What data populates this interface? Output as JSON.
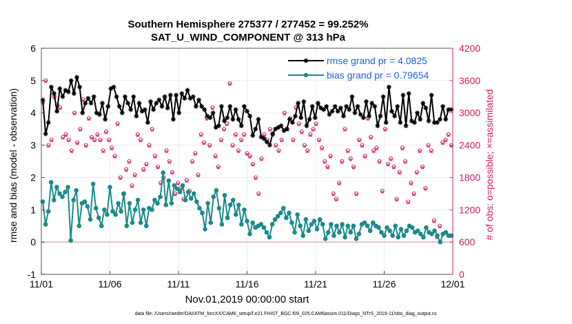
{
  "chart_data": {
    "type": "line",
    "title": "Southern Hemisphere 275377 / 277452 = 99.252%",
    "subtitle": "SAT_U_WIND_COMPONENT @ 313 hPa",
    "xlabel": "Nov.01,2019 00:00:00 start",
    "ylabel_left": "rmse and bias (model - observation)",
    "ylabel_right": "# of obs: o=possible; ×=assimilated",
    "footnote": "data file: /Users/raeder/DAI/ATM_forcXX/CAM6_setup/f.e21.FHIST_BGC.f09_025.CAM6assim.011/Diags_NTrS_2019-11/obs_diag_output.nc",
    "x_ticks": [
      "11/01",
      "11/06",
      "11/11",
      "11/16",
      "11/21",
      "11/26",
      "12/01"
    ],
    "ylim_left": [
      -1,
      6
    ],
    "y_ticks_left": [
      "-1",
      "0",
      "1",
      "2",
      "3",
      "4",
      "5",
      "6"
    ],
    "ylim_right": [
      0,
      4200
    ],
    "y_ticks_right": [
      "0",
      "600",
      "1200",
      "1800",
      "2400",
      "3000",
      "3600",
      "4200"
    ],
    "x_range_days": [
      0,
      30
    ],
    "grid": true,
    "legend": [
      "rmse grand pr = 4.0825",
      "bias grand pr = 0.79654"
    ],
    "colors": {
      "rmse": "#000000",
      "bias": "#1a8a8a",
      "obs": "#cc1a66",
      "zero_line": "#d8b8b8"
    },
    "series": [
      {
        "name": "rmse",
        "values": [
          4.4,
          3.35,
          3.7,
          4.8,
          4.6,
          4.05,
          4.75,
          4.5,
          4.7,
          4.65,
          5.0,
          4.6,
          5.1,
          4.8,
          4.0,
          4.3,
          4.45,
          4.3,
          4.5,
          4.0,
          3.95,
          4.3,
          3.8,
          4.2,
          4.75,
          4.8,
          4.5,
          4.2,
          4.0,
          4.5,
          4.3,
          4.1,
          4.5,
          3.9,
          4.3,
          4.05,
          4.1,
          3.7,
          4.35,
          4.1,
          4.3,
          4.4,
          4.2,
          4.5,
          4.15,
          4.55,
          3.8,
          4.55,
          4.0,
          4.6,
          4.45,
          4.7,
          4.45,
          4.5,
          4.2,
          4.4,
          4.2,
          4.1,
          3.9,
          3.85,
          4.0,
          3.55,
          3.6,
          4.2,
          3.75,
          3.85,
          4.2,
          3.8,
          4.1,
          3.8,
          3.6,
          4.2,
          4.05,
          3.9,
          3.3,
          3.5,
          3.8,
          3.25,
          3.2,
          3.1,
          3.0,
          3.35,
          3.5,
          3.55,
          3.6,
          3.45,
          3.5,
          3.8,
          3.7,
          3.9,
          4.3,
          3.85,
          4.35,
          3.6,
          3.8,
          4.2,
          3.85,
          4.3,
          4.15,
          4.1,
          4.2,
          3.95,
          4.05,
          4.2,
          4.05,
          4.15,
          3.9,
          4.2,
          4.1,
          4.5,
          4.0,
          4.2,
          3.95,
          3.85,
          4.35,
          3.9,
          4.3,
          4.2,
          3.6,
          3.9,
          4.5,
          3.7,
          4.8,
          4.05,
          3.9,
          4.2,
          3.7,
          4.55,
          3.6,
          4.6,
          3.75,
          3.7,
          4.0,
          3.8,
          4.3,
          4.15,
          3.75,
          4.55,
          3.7,
          3.7,
          3.8,
          4.2,
          3.8,
          4.1,
          4.1
        ]
      },
      {
        "name": "bias",
        "values": [
          1.25,
          0.55,
          0.95,
          1.85,
          1.3,
          1.7,
          1.5,
          1.4,
          1.55,
          1.7,
          0.05,
          1.3,
          1.6,
          0.5,
          1.2,
          1.25,
          1.1,
          0.7,
          1.8,
          1.05,
          0.75,
          0.5,
          1.0,
          0.85,
          1.7,
          0.95,
          0.85,
          1.2,
          0.95,
          1.5,
          0.5,
          1.2,
          0.6,
          1.0,
          1.3,
          0.6,
          1.0,
          0.5,
          1.05,
          1.0,
          1.3,
          1.2,
          1.4,
          2.15,
          1.15,
          1.9,
          1.2,
          1.75,
          1.65,
          1.55,
          1.75,
          1.3,
          1.55,
          1.35,
          1.5,
          1.25,
          1.05,
          0.9,
          0.4,
          1.2,
          0.6,
          1.4,
          1.6,
          1.05,
          0.55,
          1.45,
          0.75,
          1.15,
          1.3,
          0.85,
          1.15,
          0.55,
          1.0,
          0.65,
          0.25,
          0.6,
          0.45,
          0.5,
          0.55,
          0.45,
          0.3,
          0.15,
          0.55,
          0.7,
          0.8,
          0.9,
          1.05,
          0.75,
          0.9,
          0.6,
          0.3,
          0.85,
          0.5,
          0.2,
          0.7,
          0.35,
          0.55,
          0.65,
          0.4,
          0.7,
          0.55,
          0.1,
          0.3,
          0.55,
          0.2,
          0.5,
          0.3,
          0.55,
          0.15,
          0.5,
          0.3,
          0.5,
          0.1,
          0.25,
          0.55,
          0.6,
          0.5,
          0.35,
          0.6,
          0.5,
          0.45,
          0.3,
          0.2,
          0.45,
          0.35,
          0.2,
          0.5,
          0.15,
          0.4,
          0.2,
          0.35,
          0.5,
          0.45,
          0.3,
          0.35,
          0.25,
          0.15,
          0.45,
          0.3,
          0.25,
          0.35,
          0.2,
          0.0,
          0.25,
          0.3,
          0.2,
          0.2
        ]
      },
      {
        "name": "obs_possible",
        "values": [
          3200,
          3600,
          2400,
          2500,
          3300,
          3150,
          3100,
          2550,
          2600,
          2500,
          2300,
          3000,
          2450,
          2700,
          3250,
          2400,
          2900,
          2550,
          2500,
          2600,
          2500,
          2300,
          2650,
          2500,
          2350,
          2200,
          2800,
          1800,
          1500,
          1950,
          2100,
          1650,
          1850,
          2600,
          2500,
          1950,
          2050,
          2400,
          2700,
          2200,
          2000,
          1700,
          1800,
          2300,
          2100,
          1900,
          1500,
          1700,
          1600,
          1400,
          1750,
          1550,
          2100,
          2250,
          1850,
          2600,
          2450,
          2900,
          2400,
          3100,
          2200,
          2000,
          2500,
          2700,
          2800,
          3550,
          2400,
          2600,
          2300,
          2500,
          2600,
          2250,
          2200,
          2050,
          1800,
          1500,
          2150,
          2600,
          2500,
          2700,
          2600,
          2400,
          2300,
          2500,
          3000,
          2700,
          2900,
          2500,
          3100,
          2800,
          2650,
          2400,
          2300,
          2600,
          2700,
          2800,
          2500,
          2350,
          2100,
          2000,
          2200,
          1500,
          1400,
          1700,
          2100,
          2700,
          2300,
          2150,
          2000,
          1500,
          2500,
          2400,
          2200,
          2900,
          2550,
          2300,
          2350,
          2100,
          1550,
          2700,
          2050,
          2150,
          2000,
          1400,
          1900,
          2350,
          2100,
          1350,
          1700,
          1500,
          1900,
          2300,
          2000,
          1600,
          2400,
          2300,
          1000,
          700,
          900,
          2450,
          2500,
          2600,
          2400
        ]
      },
      {
        "name": "obs_assimilated",
        "values": [
          3180,
          3580,
          2380,
          2480,
          3280,
          3130,
          3080,
          2530,
          2580,
          2480,
          2280,
          2980,
          2430,
          2680,
          3230,
          2380,
          2880,
          2530,
          2480,
          2580,
          2480,
          2280,
          2630,
          2480,
          2330,
          2180,
          2780,
          1780,
          1480,
          1930,
          2080,
          1630,
          1830,
          2580,
          2480,
          1930,
          2030,
          2380,
          2680,
          2180,
          1980,
          1680,
          1780,
          2280,
          2080,
          1880,
          1480,
          1680,
          1580,
          1380,
          1730,
          1530,
          2080,
          2230,
          1830,
          2580,
          2430,
          2880,
          2380,
          3080,
          2180,
          1980,
          2480,
          2680,
          2780,
          3530,
          2380,
          2580,
          2280,
          2480,
          2580,
          2230,
          2180,
          2030,
          1780,
          1480,
          2130,
          2580,
          2480,
          2680,
          2580,
          2380,
          2280,
          2480,
          2980,
          2680,
          2880,
          2480,
          3080,
          2780,
          2630,
          2380,
          2280,
          2580,
          2680,
          2780,
          2480,
          2330,
          2080,
          1980,
          2180,
          1480,
          1380,
          1680,
          2080,
          2680,
          2280,
          2130,
          1980,
          1480,
          2480,
          2380,
          2180,
          2880,
          2530,
          2280,
          2330,
          2080,
          1530,
          2680,
          2030,
          2130,
          1980,
          1380,
          1880,
          2330,
          2080,
          1330,
          1680,
          1480,
          1880,
          2280,
          1980,
          1580,
          2380,
          2280,
          980,
          680,
          880,
          2430,
          2480,
          2580,
          2380
        ]
      }
    ]
  }
}
